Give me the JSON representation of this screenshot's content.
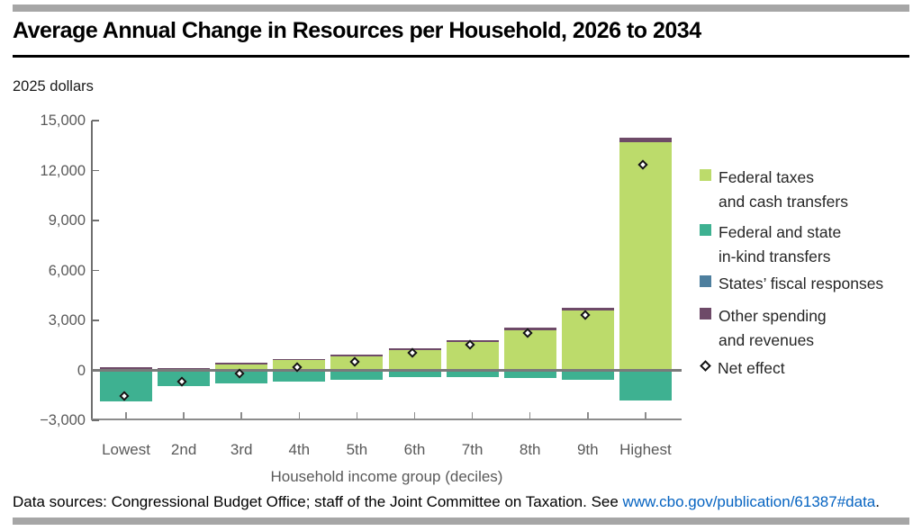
{
  "header": {
    "title": "Average Annual Change in Resources per Household, 2026 to 2034",
    "units_label": "2025 dollars"
  },
  "colors": {
    "federal_taxes_green": "#bcdb6b",
    "in_kind_teal": "#3eb191",
    "states_blue": "#4e7f9e",
    "other_purple": "#6e4a68",
    "rule_gray": "#a6a6a6",
    "axis_gray": "#6f6f6f",
    "label_gray": "#595959",
    "link_blue": "#0563c1"
  },
  "chart_data": {
    "type": "bar",
    "subtype": "stacked-bar-with-net-markers",
    "categories": [
      "Lowest",
      "2nd",
      "3rd",
      "4th",
      "5th",
      "6th",
      "7th",
      "8th",
      "9th",
      "Highest"
    ],
    "series": [
      {
        "name": "Federal taxes and cash transfers",
        "color": "#bcdb6b",
        "values": [
          0,
          0,
          350,
          600,
          850,
          1200,
          1700,
          2400,
          3600,
          13700
        ]
      },
      {
        "name": "Federal and state in-kind transfers",
        "color": "#3eb191",
        "values": [
          -1850,
          -950,
          -800,
          -650,
          -550,
          -400,
          -400,
          -450,
          -550,
          -1800
        ]
      },
      {
        "name": "States’ fiscal responses",
        "color": "#4e7f9e",
        "values": [
          0,
          0,
          0,
          0,
          0,
          0,
          0,
          0,
          0,
          0
        ]
      },
      {
        "name": "Other spending and revenues",
        "color": "#6e4a68",
        "values": [
          200,
          150,
          100,
          100,
          100,
          100,
          100,
          150,
          150,
          300
        ]
      }
    ],
    "net_effect": {
      "name": "Net effect",
      "marker": "open-diamond",
      "values": [
        -1650,
        -800,
        -350,
        50,
        400,
        900,
        1400,
        2100,
        3200,
        12200
      ]
    },
    "y_axis": {
      "min": -3000,
      "max": 15000,
      "tick_step": 3000,
      "tick_values": [
        15000,
        12000,
        9000,
        6000,
        3000,
        0,
        -3000
      ],
      "tick_labels": [
        "15,000",
        "12,000",
        "9,000",
        "6,000",
        "3,000",
        "0",
        "−3,000"
      ]
    },
    "xlabel": "Household income group (deciles)",
    "ylabel": "2025 dollars",
    "grid": false,
    "legend_position": "right"
  },
  "legend": {
    "items": [
      {
        "line1": "Federal taxes",
        "line2": "and cash transfers",
        "color": "#bcdb6b",
        "marker": "square"
      },
      {
        "line1": "Federal and state",
        "line2": "in-kind transfers",
        "color": "#3eb191",
        "marker": "square"
      },
      {
        "line1": "States’ fiscal responses",
        "color": "#4e7f9e",
        "marker": "square"
      },
      {
        "line1": "Other spending",
        "line2": "and revenues",
        "color": "#6e4a68",
        "marker": "square"
      },
      {
        "line1": "Net effect",
        "marker": "open-diamond"
      }
    ]
  },
  "footer": {
    "text_before_link": "Data sources: Congressional Budget Office; staff of the Joint Committee on Taxation. See ",
    "link_text": "www.cbo.gov/publication/61387#data",
    "text_after_link": "."
  }
}
